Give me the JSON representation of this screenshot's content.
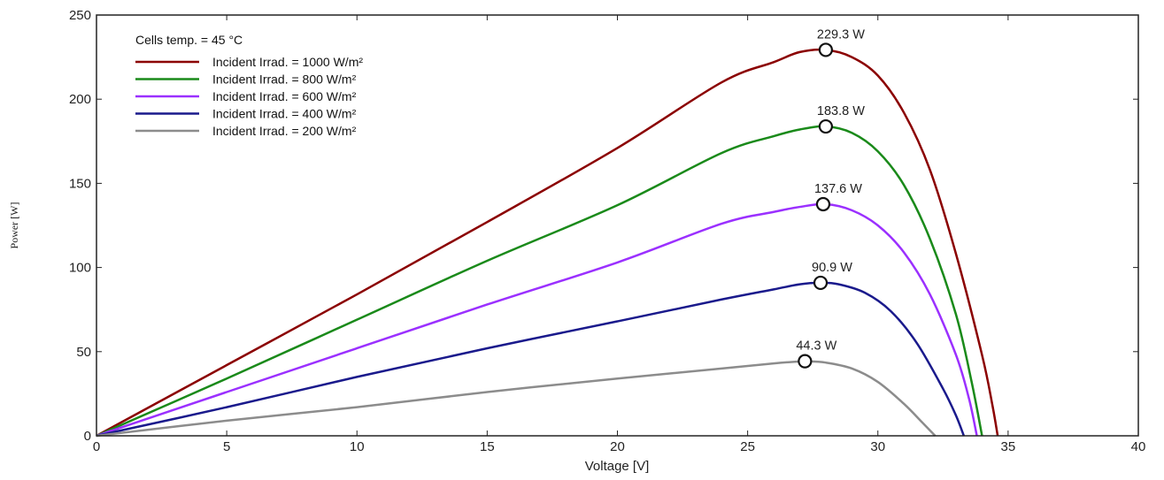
{
  "chart_data": {
    "type": "line",
    "xlabel": "Voltage [V]",
    "ylabel": "Power [W]",
    "xlim": [
      0,
      40
    ],
    "ylim": [
      0,
      250
    ],
    "xticks": [
      0,
      5,
      10,
      15,
      20,
      25,
      30,
      35,
      40
    ],
    "yticks": [
      0,
      50,
      100,
      150,
      200,
      250
    ],
    "grid": false,
    "legend_position": "top-left",
    "legend_title": "Cells temp. = 45 °C",
    "series": [
      {
        "name": "Incident Irrad. = 1000 W/m²",
        "color": "#8b0000",
        "x": [
          0,
          5,
          10,
          15,
          20,
          24,
          26,
          27,
          28,
          29,
          30,
          31,
          32,
          33,
          34,
          34.4,
          34.6
        ],
        "y": [
          0,
          42,
          84,
          127,
          171,
          210,
          222,
          228,
          229.3,
          225,
          214,
          192,
          158,
          108,
          48,
          18,
          0
        ],
        "mpp": {
          "x": 28.0,
          "y": 229.3,
          "label": "229.3 W"
        }
      },
      {
        "name": "Incident Irrad. = 800 W/m²",
        "color": "#1a8a1a",
        "x": [
          0,
          5,
          10,
          15,
          20,
          24,
          26,
          27,
          28,
          29,
          30,
          31,
          32,
          33,
          33.6,
          34.0
        ],
        "y": [
          0,
          34,
          69,
          104,
          137,
          168,
          178,
          182,
          183.8,
          180,
          169,
          149,
          117,
          72,
          32,
          0
        ],
        "mpp": {
          "x": 28.0,
          "y": 183.8,
          "label": "183.8 W"
        }
      },
      {
        "name": "Incident Irrad. = 600 W/m²",
        "color": "#9b30ff",
        "x": [
          0,
          5,
          10,
          15,
          20,
          24,
          26,
          27,
          28,
          29,
          30,
          31,
          32,
          33,
          33.5,
          33.8
        ],
        "y": [
          0,
          26,
          52,
          78,
          103,
          126,
          133,
          136,
          137.6,
          134,
          125,
          109,
          84,
          48,
          22,
          0
        ],
        "mpp": {
          "x": 27.9,
          "y": 137.6,
          "label": "137.6 W"
        }
      },
      {
        "name": "Incident Irrad. = 400 W/m²",
        "color": "#1a1a8c",
        "x": [
          0,
          5,
          10,
          15,
          20,
          24,
          26,
          27,
          27.8,
          28.5,
          29.5,
          30.5,
          31.5,
          32.5,
          33.0,
          33.3
        ],
        "y": [
          0,
          17,
          35,
          52,
          68,
          81,
          87,
          90,
          90.9,
          90,
          85,
          74,
          55,
          28,
          12,
          0
        ],
        "mpp": {
          "x": 27.8,
          "y": 90.9,
          "label": "90.9 W"
        }
      },
      {
        "name": "Incident Irrad. = 200 W/m²",
        "color": "#8c8c8c",
        "x": [
          0,
          5,
          10,
          15,
          20,
          24,
          26,
          27,
          27.2,
          28,
          29,
          30,
          31,
          31.7,
          32.2
        ],
        "y": [
          0,
          9,
          17,
          26,
          34,
          40,
          43,
          44.2,
          44.3,
          43.5,
          40,
          32,
          19,
          8,
          0
        ],
        "mpp": {
          "x": 27.2,
          "y": 44.3,
          "label": "44.3 W"
        }
      }
    ]
  }
}
